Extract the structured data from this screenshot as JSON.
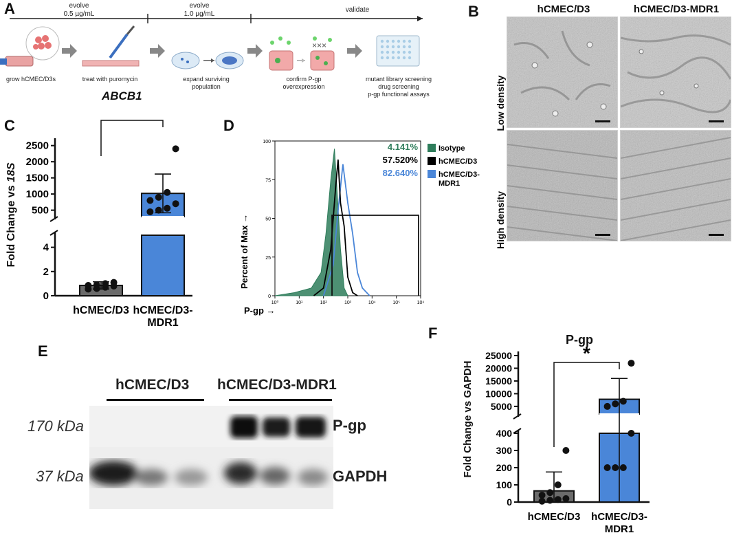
{
  "panels": {
    "A": "A",
    "B": "B",
    "C": "C",
    "D": "D",
    "E": "E",
    "F": "F"
  },
  "workflow": {
    "stages": [
      {
        "title": "evolve\n0.5 µg/mL"
      },
      {
        "title": "evolve\n1.0 µg/mL"
      },
      {
        "title": "validate"
      }
    ],
    "steps": [
      "grow hCMEC/D3s",
      "treat with puromycin",
      "expand surviving\npopulation",
      "confirm P-gp\noverexpression",
      "mutant library screening\ndrug screening\np-gp functional assays"
    ],
    "gene": "ABCB1"
  },
  "microscopy": {
    "columns": [
      "hCMEC/D3",
      "hCMEC/D3-MDR1"
    ],
    "rows": [
      "Low density",
      "High density"
    ]
  },
  "chart_data": [
    {
      "panel": "C",
      "type": "bar",
      "ylabel": "Fold Change vs 18S",
      "ylabel_plain": "Fold Change vs ",
      "ylabel_italic": "18S",
      "categories": [
        "hCMEC/D3",
        "hCMEC/D3-MDR1"
      ],
      "values": [
        0.85,
        1020
      ],
      "error": [
        0.3,
        600
      ],
      "points": [
        [
          0.55,
          0.6,
          0.7,
          0.8,
          0.85,
          0.9,
          1.0,
          1.1
        ],
        [
          450,
          500,
          560,
          700,
          800,
          900,
          1050,
          2400
        ]
      ],
      "yticks_lower": [
        "0",
        "2",
        "4"
      ],
      "yticks_upper": [
        "500",
        "1000",
        "1500",
        "2000",
        "2500"
      ],
      "ylim_lower": [
        0,
        5
      ],
      "ylim_upper": [
        300,
        2600
      ],
      "significance": "***",
      "colors": [
        "#6b6b6b",
        "#4a86d8"
      ]
    },
    {
      "panel": "D",
      "type": "line",
      "ylabel": "Percent of Max →",
      "xlabel": "P-gp →",
      "yticks": [
        "0",
        "25",
        "50",
        "75",
        "100"
      ],
      "xticks": [
        "10⁰",
        "10¹",
        "10²",
        "10³",
        "10⁴",
        "10⁵",
        "10⁶"
      ],
      "series": [
        {
          "name": "Isotype",
          "percent": "4.141%",
          "color": "#2e7d5b"
        },
        {
          "name": "hCMEC/D3",
          "percent": "57.520%",
          "color": "#000000"
        },
        {
          "name": "hCMEC/D3-MDR1",
          "percent": "82.640%",
          "color": "#4a86d8"
        }
      ]
    },
    {
      "panel": "F",
      "type": "bar",
      "title": "P-gp",
      "ylabel": "Fold Change vs GAPDH",
      "categories": [
        "hCMEC/D3",
        "hCMEC/D3-MDR1"
      ],
      "values": [
        65,
        7800
      ],
      "error": [
        110,
        8200
      ],
      "points": [
        [
          5,
          10,
          15,
          20,
          40,
          55,
          100,
          300
        ],
        [
          200,
          200,
          200,
          400,
          5000,
          6000,
          7000,
          22000
        ]
      ],
      "yticks_lower": [
        "0",
        "100",
        "200",
        "300",
        "400"
      ],
      "yticks_upper": [
        "5000",
        "10000",
        "15000",
        "20000",
        "25000"
      ],
      "ylim_lower": [
        0,
        400
      ],
      "ylim_upper": [
        2000,
        25000
      ],
      "significance": "*",
      "colors": [
        "#6b6b6b",
        "#4a86d8"
      ]
    }
  ],
  "blot": {
    "groups": [
      "hCMEC/D3",
      "hCMEC/D3-MDR1"
    ],
    "bands": [
      {
        "size": "170 kDa",
        "name": "P-gp"
      },
      {
        "size": "37 kDa",
        "name": "GAPDH"
      }
    ]
  }
}
